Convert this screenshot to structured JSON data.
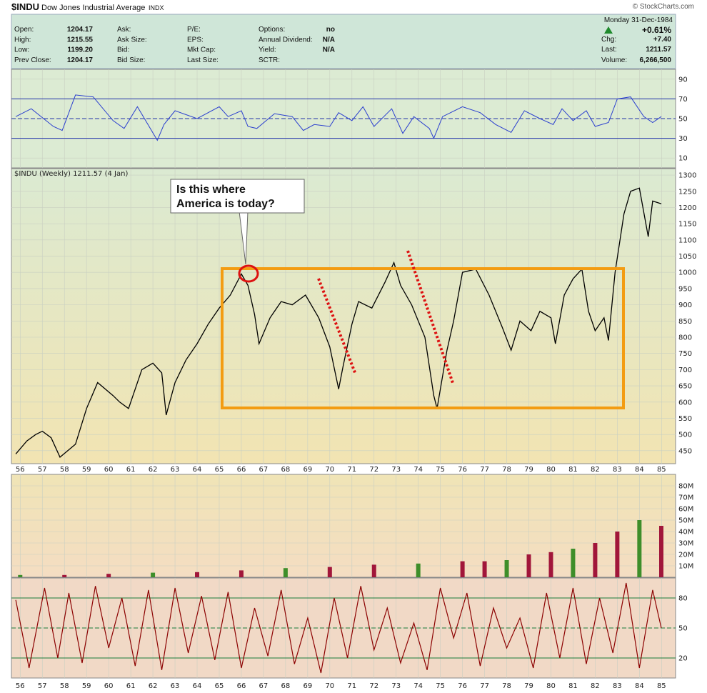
{
  "header": {
    "symbol": "$INDU",
    "name": "Dow Jones Industrial Average",
    "exchange": "INDX",
    "watermark": "© StockCharts.com",
    "date": "Monday   31-Dec-1984",
    "change_pct": "+0.61%",
    "fields": [
      {
        "label": "Open:",
        "value": "1204.17"
      },
      {
        "label": "High:",
        "value": "1215.55"
      },
      {
        "label": "Low:",
        "value": "1199.20"
      },
      {
        "label": "Prev Close:",
        "value": "1204.17"
      },
      {
        "label": "Ask:",
        "value": ""
      },
      {
        "label": "Ask Size:",
        "value": ""
      },
      {
        "label": "Bid:",
        "value": ""
      },
      {
        "label": "Bid Size:",
        "value": ""
      },
      {
        "label": "P/E:",
        "value": ""
      },
      {
        "label": "EPS:",
        "value": ""
      },
      {
        "label": "Mkt Cap:",
        "value": ""
      },
      {
        "label": "Last Size:",
        "value": ""
      },
      {
        "label": "Options:",
        "value": "no"
      },
      {
        "label": "Annual Dividend:",
        "value": "N/A"
      },
      {
        "label": "Yield:",
        "value": "N/A"
      },
      {
        "label": "SCTR:",
        "value": ""
      },
      {
        "label": "Chg:",
        "value": "+7.40"
      },
      {
        "label": "Last:",
        "value": "1211.57"
      },
      {
        "label": "Volume:",
        "value": "6,266,500"
      }
    ]
  },
  "annotation": {
    "callout": [
      "Is this where",
      "America is today?"
    ]
  },
  "chart_data": [
    {
      "type": "line",
      "panel": "upper-indicator",
      "ylim": [
        0,
        100
      ],
      "yticks": [
        90,
        70,
        50,
        30,
        10
      ],
      "reference_lines": [
        70,
        50,
        30
      ],
      "x": [
        1955.8,
        1956.5,
        1957.5,
        1957.9,
        1958.5,
        1959.3,
        1960.2,
        1960.7,
        1961.3,
        1962.2,
        1962.5,
        1963.0,
        1964.0,
        1965.0,
        1965.4,
        1966.0,
        1966.3,
        1966.7,
        1967.5,
        1968.3,
        1968.8,
        1969.3,
        1970.0,
        1970.4,
        1971.0,
        1971.5,
        1972.0,
        1972.8,
        1973.3,
        1973.8,
        1974.5,
        1974.7,
        1975.1,
        1976.0,
        1976.8,
        1977.5,
        1978.2,
        1978.8,
        1979.5,
        1980.1,
        1980.5,
        1981.0,
        1981.6,
        1982.0,
        1982.6,
        1983.0,
        1983.6,
        1984.2,
        1984.6,
        1984.99
      ],
      "values": [
        52,
        60,
        42,
        38,
        74,
        72,
        48,
        40,
        62,
        28,
        44,
        58,
        50,
        62,
        52,
        58,
        42,
        40,
        55,
        52,
        38,
        44,
        42,
        56,
        48,
        62,
        42,
        60,
        35,
        52,
        40,
        30,
        52,
        62,
        56,
        44,
        36,
        58,
        50,
        44,
        60,
        48,
        58,
        42,
        46,
        70,
        72,
        52,
        46,
        52
      ]
    },
    {
      "type": "line",
      "title": "$INDU (Weekly) 1211.57 (4 Jan)",
      "panel": "price",
      "ylim": [
        410,
        1320
      ],
      "yticks": [
        1300,
        1250,
        1200,
        1150,
        1100,
        1050,
        1000,
        950,
        900,
        850,
        800,
        750,
        700,
        650,
        600,
        550,
        500,
        450
      ],
      "x": [
        1955.8,
        1956.3,
        1956.7,
        1957.0,
        1957.4,
        1957.8,
        1958.5,
        1959.0,
        1959.5,
        1960.2,
        1960.5,
        1960.9,
        1961.5,
        1962.0,
        1962.4,
        1962.6,
        1963.0,
        1963.5,
        1964.0,
        1964.5,
        1965.0,
        1965.5,
        1966.0,
        1966.3,
        1966.6,
        1966.8,
        1967.3,
        1967.8,
        1968.3,
        1968.9,
        1969.5,
        1970.0,
        1970.4,
        1970.6,
        1971.0,
        1971.3,
        1971.9,
        1972.5,
        1972.9,
        1973.2,
        1973.7,
        1974.3,
        1974.7,
        1974.85,
        1975.3,
        1975.6,
        1976.0,
        1976.6,
        1977.2,
        1977.8,
        1978.2,
        1978.6,
        1979.1,
        1979.5,
        1980.0,
        1980.2,
        1980.6,
        1981.0,
        1981.4,
        1981.7,
        1982.0,
        1982.4,
        1982.6,
        1982.9,
        1983.3,
        1983.6,
        1984.0,
        1984.4,
        1984.6,
        1984.99
      ],
      "values": [
        440,
        480,
        500,
        510,
        490,
        430,
        470,
        580,
        660,
        620,
        600,
        580,
        700,
        720,
        690,
        560,
        660,
        730,
        780,
        840,
        890,
        930,
        995,
        960,
        870,
        780,
        860,
        910,
        900,
        930,
        860,
        770,
        640,
        710,
        840,
        910,
        890,
        970,
        1030,
        960,
        900,
        800,
        620,
        580,
        760,
        850,
        1000,
        1010,
        930,
        830,
        760,
        850,
        820,
        880,
        860,
        780,
        930,
        980,
        1010,
        880,
        820,
        860,
        790,
        1000,
        1180,
        1250,
        1260,
        1110,
        1220,
        1211.57
      ]
    },
    {
      "type": "bar",
      "panel": "volume",
      "ylim": [
        0,
        90
      ],
      "ylabel_ticks": [
        "80M",
        "70M",
        "60M",
        "50M",
        "40M",
        "30M",
        "20M",
        "10M"
      ],
      "yticks": [
        80,
        70,
        60,
        50,
        40,
        30,
        20,
        10
      ],
      "x": [
        1956,
        1958,
        1960,
        1962,
        1964,
        1966,
        1968,
        1970,
        1972,
        1974,
        1976,
        1977,
        1978,
        1979,
        1980,
        1981,
        1982,
        1983,
        1984,
        1984.99
      ],
      "values": [
        2,
        2,
        3,
        4,
        4.5,
        6,
        8,
        9,
        11,
        12,
        14,
        14,
        15,
        20,
        22,
        25,
        30,
        40,
        50,
        45
      ]
    },
    {
      "type": "line",
      "panel": "lower-indicator",
      "ylim": [
        0,
        100
      ],
      "yticks": [
        80,
        50,
        20
      ],
      "reference_lines": [
        80,
        50,
        20
      ],
      "x": [
        1955.8,
        1956.4,
        1957.1,
        1957.7,
        1958.2,
        1958.8,
        1959.4,
        1960.0,
        1960.6,
        1961.2,
        1961.8,
        1962.4,
        1963.0,
        1963.6,
        1964.2,
        1964.8,
        1965.4,
        1966.0,
        1966.6,
        1967.2,
        1967.8,
        1968.4,
        1969.0,
        1969.6,
        1970.2,
        1970.8,
        1971.4,
        1972.0,
        1972.6,
        1973.2,
        1973.8,
        1974.4,
        1975.0,
        1975.6,
        1976.2,
        1976.8,
        1977.4,
        1978.0,
        1978.6,
        1979.2,
        1979.8,
        1980.4,
        1981.0,
        1981.6,
        1982.2,
        1982.8,
        1983.4,
        1984.0,
        1984.6,
        1984.99
      ],
      "values": [
        78,
        10,
        90,
        20,
        85,
        15,
        92,
        30,
        80,
        12,
        88,
        8,
        90,
        25,
        82,
        18,
        86,
        10,
        70,
        22,
        88,
        14,
        60,
        5,
        80,
        20,
        92,
        28,
        70,
        15,
        55,
        8,
        90,
        40,
        85,
        12,
        70,
        30,
        60,
        10,
        85,
        20,
        90,
        14,
        80,
        25,
        95,
        10,
        88,
        50
      ]
    }
  ],
  "x_axis_labels": [
    "56",
    "57",
    "58",
    "59",
    "60",
    "61",
    "62",
    "63",
    "64",
    "65",
    "66",
    "67",
    "68",
    "69",
    "70",
    "71",
    "72",
    "73",
    "74",
    "75",
    "76",
    "77",
    "78",
    "79",
    "80",
    "81",
    "82",
    "83",
    "84",
    "85"
  ]
}
